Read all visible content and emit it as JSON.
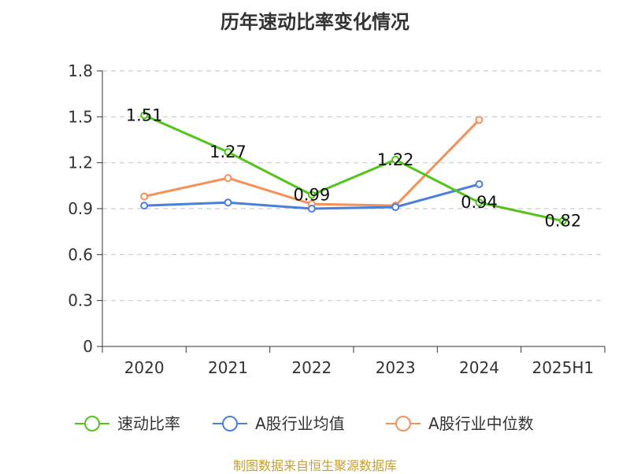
{
  "chart_data": {
    "type": "line",
    "title": "历年速动比率变化情况",
    "categories": [
      "2020",
      "2021",
      "2022",
      "2023",
      "2024",
      "2025H1"
    ],
    "y_ticks": [
      "0",
      "0.3",
      "0.6",
      "0.9",
      "1.2",
      "1.5",
      "1.8"
    ],
    "ylim": [
      0,
      1.8
    ],
    "grid": true,
    "legend_position": "bottom",
    "series": [
      {
        "name": "速动比率",
        "color": "#52c41a",
        "values": [
          1.51,
          1.27,
          0.99,
          1.22,
          0.94,
          0.82
        ],
        "labels": [
          "1.51",
          "1.27",
          "0.99",
          "1.22",
          "0.94",
          "0.82"
        ]
      },
      {
        "name": "A股行业均值",
        "color": "#4a7fdc",
        "values": [
          0.92,
          0.94,
          0.9,
          0.91,
          1.06,
          null
        ]
      },
      {
        "name": "A股行业中位数",
        "color": "#f59058",
        "values": [
          0.98,
          1.1,
          0.93,
          0.92,
          1.48,
          null
        ]
      }
    ]
  },
  "source": "制图数据来自恒生聚源数据库"
}
